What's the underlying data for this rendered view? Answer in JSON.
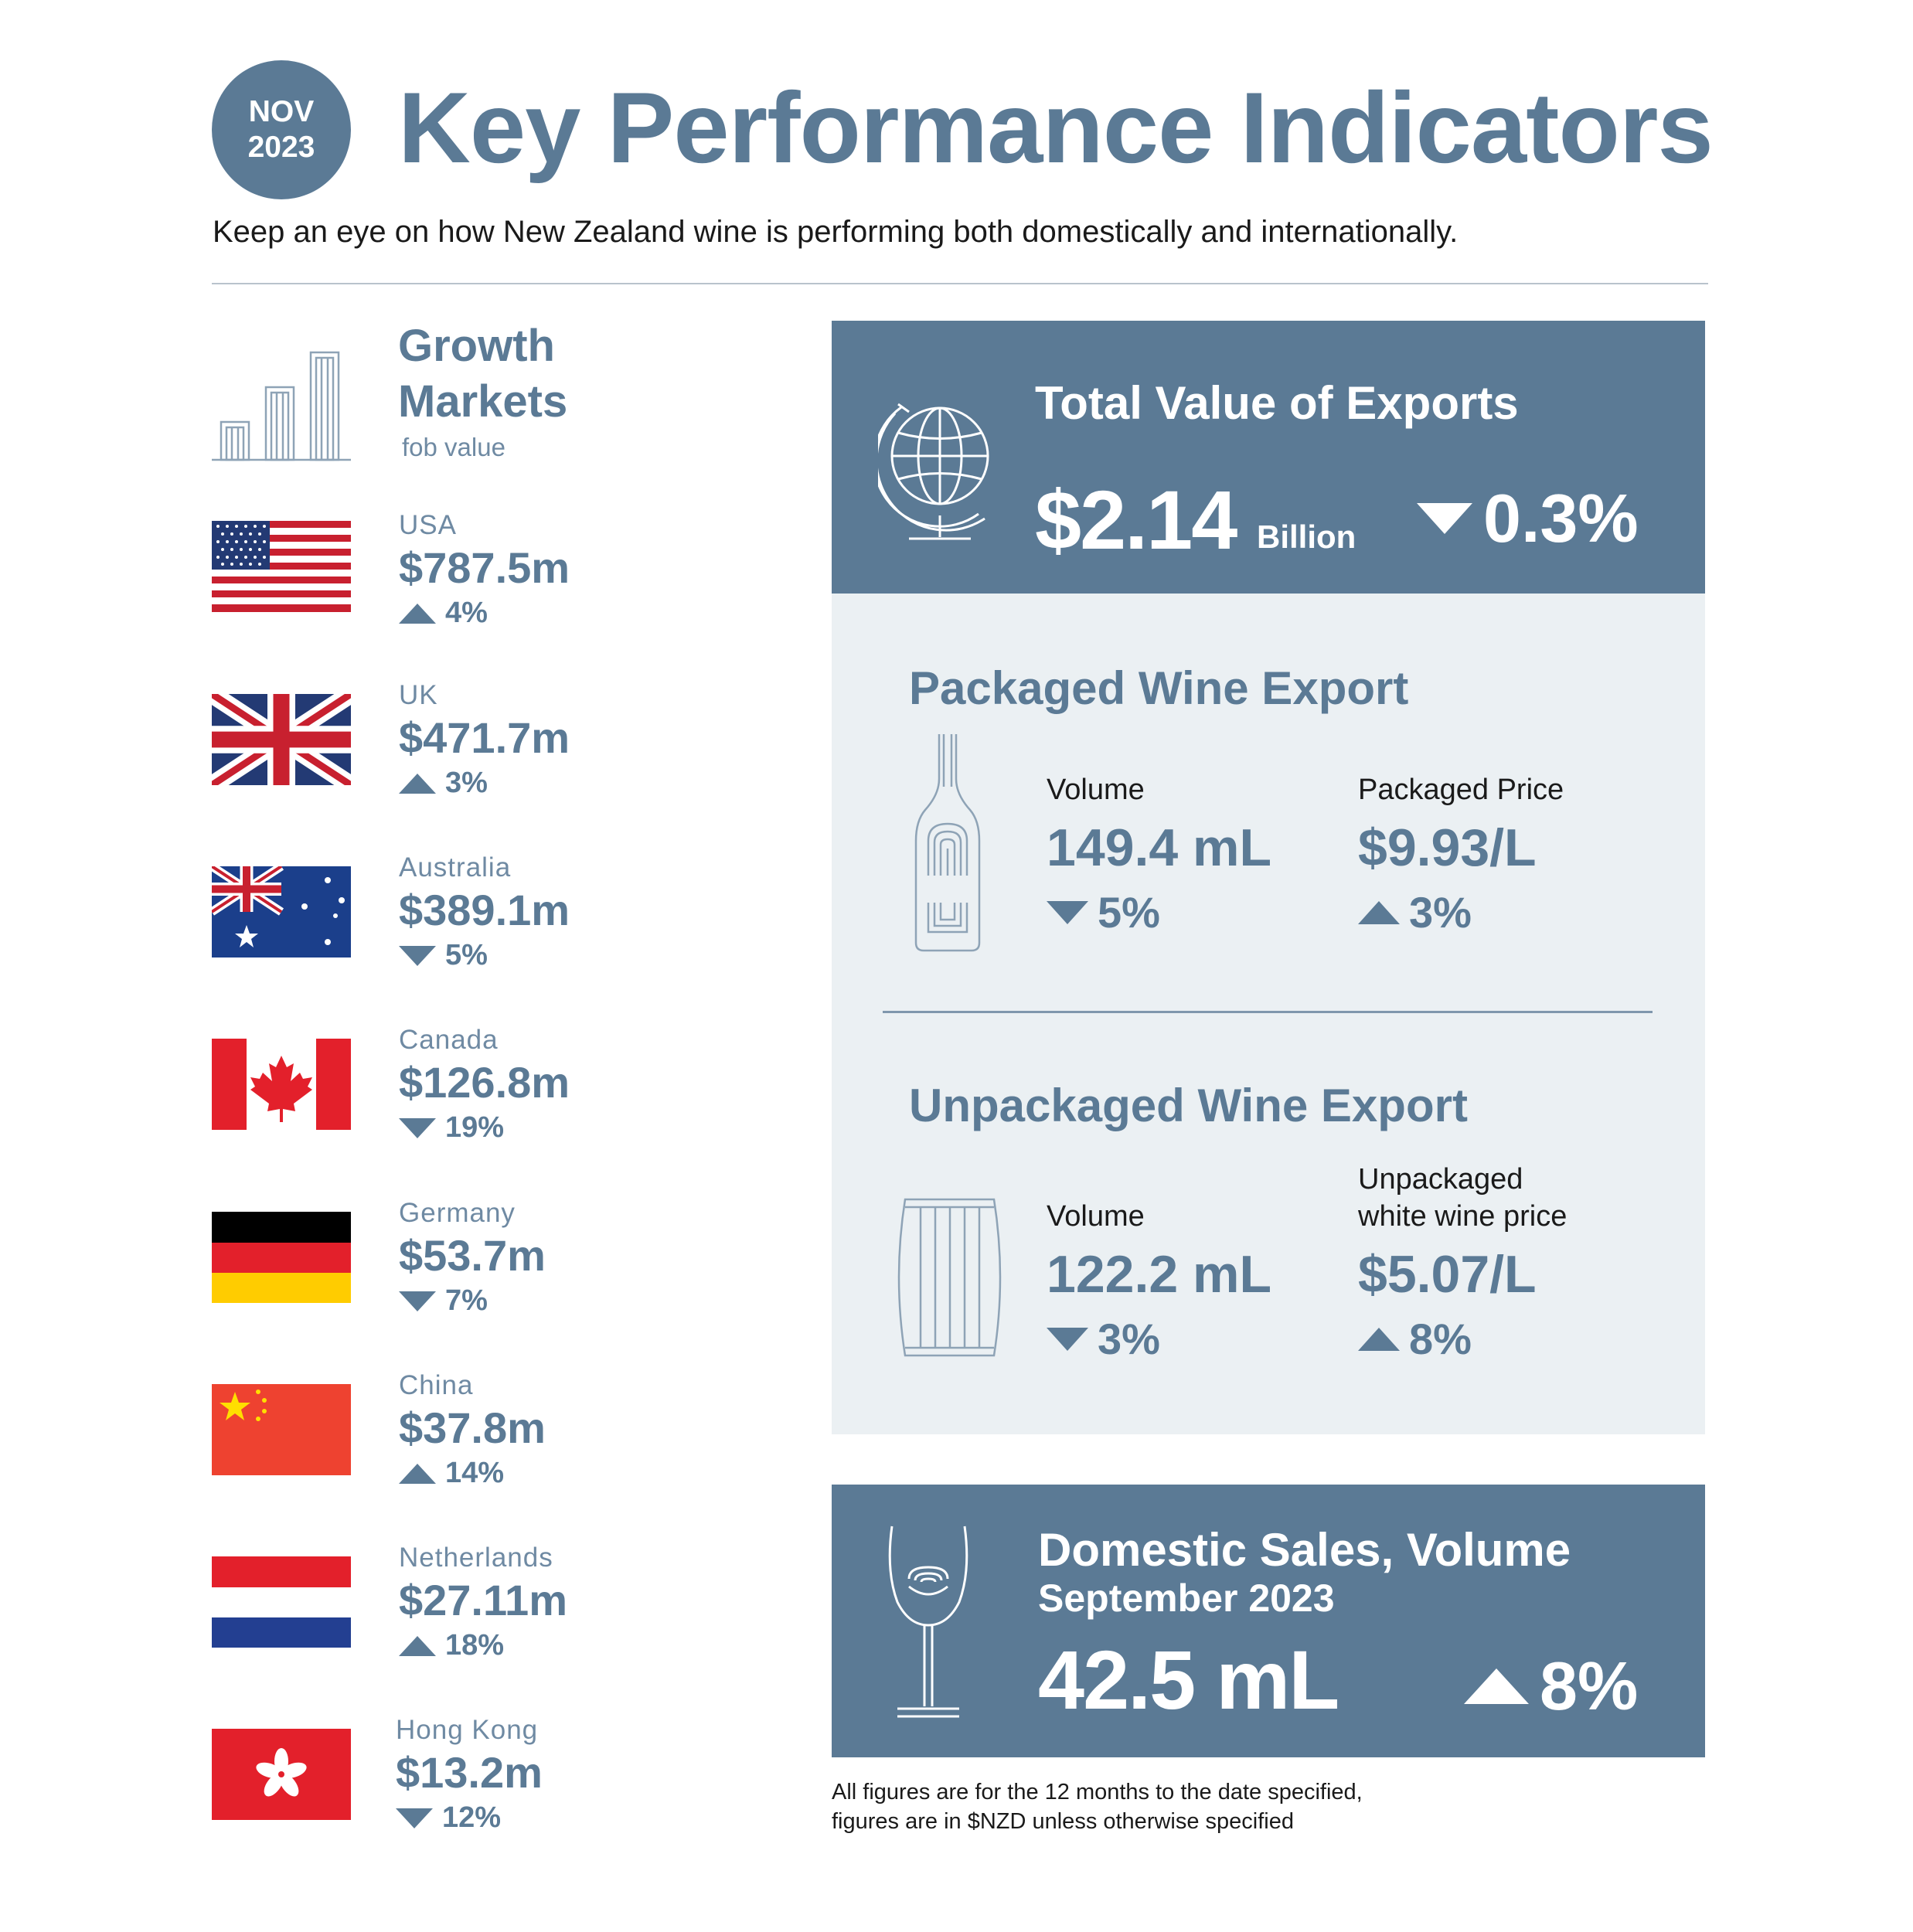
{
  "header": {
    "date_month": "NOV",
    "date_year": "2023",
    "title": "Key Performance Indicators",
    "subtitle": "Keep an eye on how New Zealand wine is performing both domestically and internationally."
  },
  "growth_markets": {
    "title_line1": "Growth",
    "title_line2": "Markets",
    "subtitle": "fob value",
    "markets": [
      {
        "name": "USA",
        "value": "$787.5m",
        "change": "4%",
        "direction": "up",
        "flag": "usa-flag"
      },
      {
        "name": "UK",
        "value": "$471.7m",
        "change": "3%",
        "direction": "up",
        "flag": "uk-flag"
      },
      {
        "name": "Australia",
        "value": "$389.1m",
        "change": "5%",
        "direction": "down",
        "flag": "australia-flag"
      },
      {
        "name": "Canada",
        "value": "$126.8m",
        "change": "19%",
        "direction": "down",
        "flag": "canada-flag"
      },
      {
        "name": "Germany",
        "value": "$53.7m",
        "change": "7%",
        "direction": "down",
        "flag": "germany-flag"
      },
      {
        "name": "China",
        "value": "$37.8m",
        "change": "14%",
        "direction": "up",
        "flag": "china-flag"
      },
      {
        "name": "Netherlands",
        "value": "$27.11m",
        "change": "18%",
        "direction": "up",
        "flag": "netherlands-flag"
      },
      {
        "name": "Hong Kong",
        "value": "$13.2m",
        "change": "12%",
        "direction": "down",
        "flag": "hong-kong-flag"
      }
    ]
  },
  "total_exports": {
    "title": "Total Value of Exports",
    "value": "$2.14",
    "unit": "Billion",
    "change": "0.3%",
    "direction": "down",
    "icon": "globe-icon"
  },
  "packaged": {
    "title": "Packaged Wine Export",
    "icon": "wine-bottle-icon",
    "volume_label": "Volume",
    "volume_value": "149.4 mL",
    "volume_change": "5%",
    "volume_direction": "down",
    "price_label": "Packaged Price",
    "price_value": "$9.93/L",
    "price_change": "3%",
    "price_direction": "up"
  },
  "unpackaged": {
    "title": "Unpackaged Wine Export",
    "icon": "barrel-icon",
    "volume_label": "Volume",
    "volume_value": "122.2 mL",
    "volume_change": "3%",
    "volume_direction": "down",
    "price_label_line1": "Unpackaged",
    "price_label_line2": "white wine price",
    "price_value": "$5.07/L",
    "price_change": "8%",
    "price_direction": "up"
  },
  "domestic": {
    "title": "Domestic Sales, Volume",
    "subtitle": "September 2023",
    "value": "42.5 mL",
    "change": "8%",
    "direction": "up",
    "icon": "wine-glass-icon"
  },
  "footnote": {
    "line1": "All figures are for the 12 months to the date specified,",
    "line2": "figures are in $NZD unless otherwise specified"
  },
  "colors": {
    "accent": "#5b7a95",
    "panel_light": "#ebf0f3",
    "text_dark": "#1a1a1a"
  }
}
